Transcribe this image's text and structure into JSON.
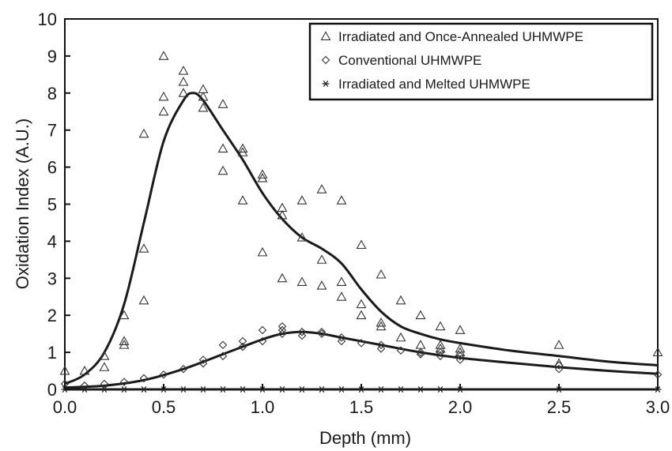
{
  "chart_data": {
    "type": "scatter",
    "title": "",
    "xlabel": "Depth (mm)",
    "ylabel": "Oxidation Index (A.U.)",
    "xlim": [
      0,
      3
    ],
    "ylim": [
      0,
      10
    ],
    "x_ticks": [
      "0.0",
      "0.5",
      "1.0",
      "1.5",
      "2.0",
      "2.5",
      "3.0"
    ],
    "y_ticks": [
      "0",
      "1",
      "2",
      "3",
      "4",
      "5",
      "6",
      "7",
      "8",
      "9",
      "10"
    ],
    "grid": false,
    "legend_position": "top-right",
    "series": [
      {
        "name": "Irradiated and Once-Annealed UHMWPE",
        "marker": "triangle",
        "points": [
          [
            0.0,
            0.5
          ],
          [
            0.1,
            0.5
          ],
          [
            0.2,
            0.6
          ],
          [
            0.2,
            0.9
          ],
          [
            0.3,
            1.2
          ],
          [
            0.3,
            1.3
          ],
          [
            0.3,
            2.0
          ],
          [
            0.4,
            2.4
          ],
          [
            0.4,
            3.8
          ],
          [
            0.4,
            6.9
          ],
          [
            0.5,
            7.5
          ],
          [
            0.5,
            7.9
          ],
          [
            0.5,
            9.0
          ],
          [
            0.6,
            8.0
          ],
          [
            0.6,
            8.3
          ],
          [
            0.6,
            8.6
          ],
          [
            0.7,
            7.6
          ],
          [
            0.7,
            7.9
          ],
          [
            0.7,
            8.1
          ],
          [
            0.8,
            5.9
          ],
          [
            0.8,
            6.5
          ],
          [
            0.8,
            7.7
          ],
          [
            0.9,
            5.1
          ],
          [
            0.9,
            6.4
          ],
          [
            0.9,
            6.5
          ],
          [
            1.0,
            3.7
          ],
          [
            1.0,
            5.7
          ],
          [
            1.0,
            5.8
          ],
          [
            1.1,
            3.0
          ],
          [
            1.1,
            4.7
          ],
          [
            1.1,
            4.9
          ],
          [
            1.2,
            2.9
          ],
          [
            1.2,
            4.1
          ],
          [
            1.2,
            5.1
          ],
          [
            1.3,
            2.8
          ],
          [
            1.3,
            3.5
          ],
          [
            1.3,
            5.4
          ],
          [
            1.4,
            2.5
          ],
          [
            1.4,
            2.9
          ],
          [
            1.4,
            5.1
          ],
          [
            1.5,
            2.0
          ],
          [
            1.5,
            2.3
          ],
          [
            1.5,
            3.9
          ],
          [
            1.6,
            1.7
          ],
          [
            1.6,
            1.8
          ],
          [
            1.6,
            3.1
          ],
          [
            1.7,
            1.4
          ],
          [
            1.7,
            2.4
          ],
          [
            1.8,
            1.2
          ],
          [
            1.8,
            2.0
          ],
          [
            1.9,
            1.1
          ],
          [
            1.9,
            1.2
          ],
          [
            1.9,
            1.7
          ],
          [
            2.0,
            1.0
          ],
          [
            2.0,
            1.1
          ],
          [
            2.0,
            1.6
          ],
          [
            2.5,
            0.7
          ],
          [
            2.5,
            1.2
          ],
          [
            3.0,
            1.0
          ]
        ],
        "fit": [
          [
            0.0,
            0.15
          ],
          [
            0.1,
            0.4
          ],
          [
            0.2,
            1.0
          ],
          [
            0.3,
            2.3
          ],
          [
            0.4,
            4.5
          ],
          [
            0.5,
            6.7
          ],
          [
            0.6,
            7.8
          ],
          [
            0.65,
            8.0
          ],
          [
            0.7,
            7.8
          ],
          [
            0.8,
            7.0
          ],
          [
            0.9,
            6.2
          ],
          [
            1.0,
            5.3
          ],
          [
            1.1,
            4.6
          ],
          [
            1.2,
            4.1
          ],
          [
            1.3,
            3.8
          ],
          [
            1.4,
            3.4
          ],
          [
            1.5,
            2.7
          ],
          [
            1.6,
            2.1
          ],
          [
            1.7,
            1.7
          ],
          [
            1.8,
            1.5
          ],
          [
            1.9,
            1.35
          ],
          [
            2.0,
            1.25
          ],
          [
            2.25,
            1.05
          ],
          [
            2.5,
            0.9
          ],
          [
            2.75,
            0.75
          ],
          [
            3.0,
            0.65
          ]
        ]
      },
      {
        "name": "Conventional UHMWPE",
        "marker": "diamond",
        "points": [
          [
            0.0,
            0.15
          ],
          [
            0.1,
            0.1
          ],
          [
            0.2,
            0.15
          ],
          [
            0.3,
            0.2
          ],
          [
            0.4,
            0.3
          ],
          [
            0.5,
            0.4
          ],
          [
            0.6,
            0.55
          ],
          [
            0.7,
            0.7
          ],
          [
            0.7,
            0.8
          ],
          [
            0.8,
            0.9
          ],
          [
            0.8,
            1.2
          ],
          [
            0.9,
            1.15
          ],
          [
            0.9,
            1.3
          ],
          [
            1.0,
            1.3
          ],
          [
            1.0,
            1.6
          ],
          [
            1.1,
            1.5
          ],
          [
            1.1,
            1.6
          ],
          [
            1.1,
            1.7
          ],
          [
            1.2,
            1.45
          ],
          [
            1.2,
            1.55
          ],
          [
            1.3,
            1.5
          ],
          [
            1.3,
            1.55
          ],
          [
            1.4,
            1.3
          ],
          [
            1.4,
            1.4
          ],
          [
            1.5,
            1.25
          ],
          [
            1.6,
            1.1
          ],
          [
            1.6,
            1.2
          ],
          [
            1.7,
            1.05
          ],
          [
            1.8,
            0.95
          ],
          [
            1.8,
            1.0
          ],
          [
            1.9,
            0.9
          ],
          [
            1.9,
            1.0
          ],
          [
            2.0,
            0.8
          ],
          [
            2.0,
            0.9
          ],
          [
            2.5,
            0.55
          ],
          [
            2.5,
            0.65
          ],
          [
            3.0,
            0.4
          ]
        ],
        "fit": [
          [
            0.0,
            0.05
          ],
          [
            0.2,
            0.1
          ],
          [
            0.4,
            0.25
          ],
          [
            0.6,
            0.55
          ],
          [
            0.8,
            0.95
          ],
          [
            1.0,
            1.35
          ],
          [
            1.1,
            1.5
          ],
          [
            1.2,
            1.55
          ],
          [
            1.3,
            1.5
          ],
          [
            1.4,
            1.4
          ],
          [
            1.6,
            1.2
          ],
          [
            1.8,
            1.0
          ],
          [
            2.0,
            0.85
          ],
          [
            2.25,
            0.72
          ],
          [
            2.5,
            0.6
          ],
          [
            2.75,
            0.5
          ],
          [
            3.0,
            0.42
          ]
        ]
      },
      {
        "name": "Irradiated and Melted UHMWPE",
        "marker": "asterisk",
        "points": [
          [
            0.0,
            0.0
          ],
          [
            0.1,
            0.0
          ],
          [
            0.2,
            0.0
          ],
          [
            0.3,
            0.0
          ],
          [
            0.4,
            0.0
          ],
          [
            0.5,
            0.0
          ],
          [
            0.6,
            0.0
          ],
          [
            0.7,
            0.0
          ],
          [
            0.8,
            0.0
          ],
          [
            0.9,
            0.0
          ],
          [
            1.0,
            0.0
          ],
          [
            1.1,
            0.0
          ],
          [
            1.2,
            0.0
          ],
          [
            1.3,
            0.0
          ],
          [
            1.4,
            0.0
          ],
          [
            1.5,
            0.0
          ],
          [
            1.6,
            0.0
          ],
          [
            1.7,
            0.0
          ],
          [
            1.8,
            0.0
          ],
          [
            1.9,
            0.0
          ],
          [
            2.0,
            0.0
          ],
          [
            2.5,
            0.0
          ],
          [
            3.0,
            0.0
          ]
        ],
        "fit": [
          [
            0.0,
            0.0
          ],
          [
            3.0,
            0.0
          ]
        ]
      }
    ]
  }
}
